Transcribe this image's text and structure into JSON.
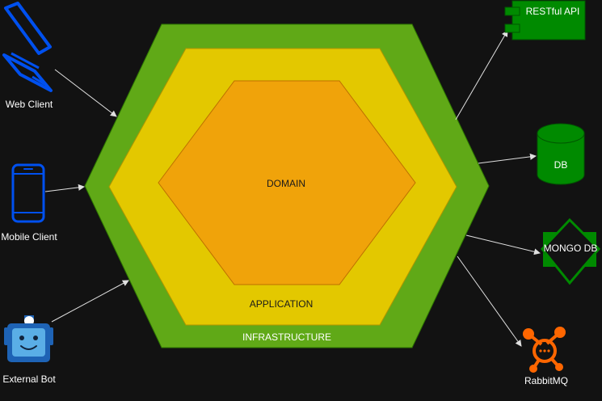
{
  "layers": {
    "domain": "DOMAIN",
    "application": "APPLICATION",
    "infrastructure": "INFRASTRUCTURE"
  },
  "actors": {
    "web_client": "Web Client",
    "mobile_client": "Mobile Client",
    "external_bot": "External Bot"
  },
  "services": {
    "restful_api": "RESTful API",
    "db": "DB",
    "mongo_db": "MONGO DB",
    "rabbitmq": "RabbitMQ"
  },
  "colors": {
    "background": "#121212",
    "infrastructure": "#60a917",
    "application": "#e3c800",
    "domain": "#f0a30a",
    "client_icon": "#0050ef",
    "service_green": "#008a00",
    "rabbitmq": "#ff6600",
    "arrow": "#e0e0e0"
  }
}
